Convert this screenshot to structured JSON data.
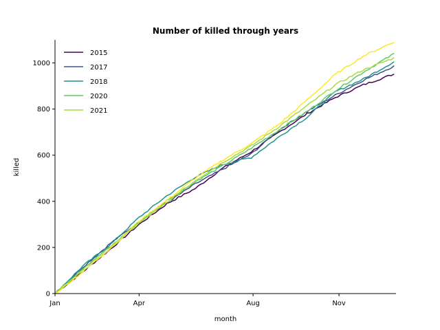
{
  "chart_data": {
    "type": "line",
    "title": "Number of killed through years",
    "xlabel": "month",
    "ylabel": "killed",
    "x_ticks": [
      {
        "label": "Jan",
        "day": 0
      },
      {
        "label": "Apr",
        "day": 90
      },
      {
        "label": "Aug",
        "day": 212
      },
      {
        "label": "Nov",
        "day": 304
      }
    ],
    "y_ticks": [
      0,
      200,
      400,
      600,
      800,
      1000
    ],
    "xlim": [
      0,
      365
    ],
    "ylim": [
      0,
      1100
    ],
    "grid": false,
    "legend_position": "top-left",
    "series": [
      {
        "name": "2015",
        "color": "#440154",
        "points": [
          [
            0,
            0
          ],
          [
            30,
            95
          ],
          [
            60,
            195
          ],
          [
            90,
            300
          ],
          [
            120,
            390
          ],
          [
            150,
            455
          ],
          [
            180,
            545
          ],
          [
            210,
            615
          ],
          [
            240,
            700
          ],
          [
            270,
            780
          ],
          [
            300,
            850
          ],
          [
            330,
            905
          ],
          [
            365,
            955
          ]
        ]
      },
      {
        "name": "2017",
        "color": "#3b528b",
        "points": [
          [
            0,
            0
          ],
          [
            30,
            115
          ],
          [
            60,
            220
          ],
          [
            90,
            310
          ],
          [
            120,
            395
          ],
          [
            150,
            475
          ],
          [
            180,
            540
          ],
          [
            210,
            605
          ],
          [
            240,
            710
          ],
          [
            270,
            790
          ],
          [
            300,
            860
          ],
          [
            330,
            925
          ],
          [
            365,
            990
          ]
        ]
      },
      {
        "name": "2018",
        "color": "#21918c",
        "points": [
          [
            0,
            0
          ],
          [
            30,
            120
          ],
          [
            60,
            215
          ],
          [
            90,
            330
          ],
          [
            120,
            425
          ],
          [
            150,
            505
          ],
          [
            180,
            560
          ],
          [
            210,
            590
          ],
          [
            240,
            680
          ],
          [
            270,
            765
          ],
          [
            300,
            875
          ],
          [
            330,
            930
          ],
          [
            365,
            1010
          ]
        ]
      },
      {
        "name": "2020",
        "color": "#5ec962",
        "points": [
          [
            0,
            0
          ],
          [
            30,
            110
          ],
          [
            60,
            205
          ],
          [
            90,
            310
          ],
          [
            120,
            405
          ],
          [
            150,
            485
          ],
          [
            180,
            555
          ],
          [
            210,
            630
          ],
          [
            240,
            710
          ],
          [
            270,
            790
          ],
          [
            300,
            880
          ],
          [
            330,
            960
          ],
          [
            365,
            1045
          ]
        ]
      },
      {
        "name": "2021",
        "color": "#a6db3e",
        "points": [
          [
            0,
            0
          ],
          [
            30,
            100
          ],
          [
            60,
            200
          ],
          [
            90,
            305
          ],
          [
            120,
            395
          ],
          [
            150,
            490
          ],
          [
            180,
            570
          ],
          [
            210,
            640
          ],
          [
            240,
            725
          ],
          [
            270,
            815
          ],
          [
            300,
            905
          ],
          [
            330,
            970
          ],
          [
            365,
            1025
          ]
        ]
      },
      {
        "color": "#fde725",
        "points": [
          [
            0,
            0
          ],
          [
            30,
            95
          ],
          [
            60,
            200
          ],
          [
            90,
            315
          ],
          [
            120,
            405
          ],
          [
            150,
            500
          ],
          [
            180,
            580
          ],
          [
            210,
            650
          ],
          [
            240,
            735
          ],
          [
            270,
            840
          ],
          [
            300,
            950
          ],
          [
            330,
            1030
          ],
          [
            365,
            1095
          ]
        ]
      }
    ]
  }
}
